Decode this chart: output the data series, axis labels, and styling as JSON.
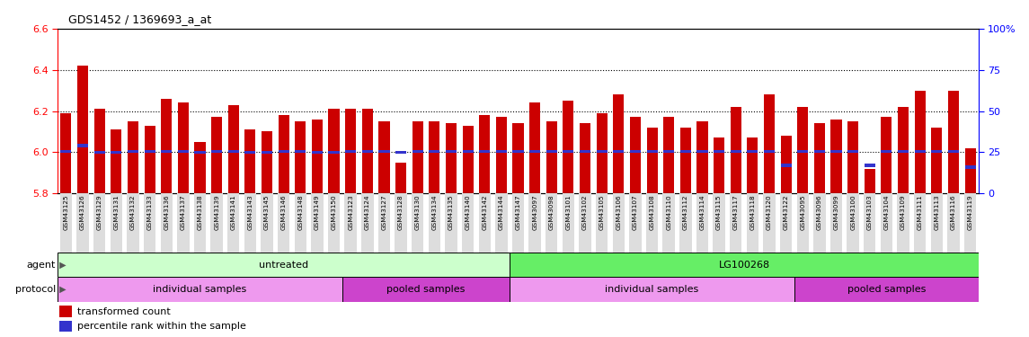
{
  "title": "GDS1452 / 1369693_a_at",
  "ylim": [
    5.8,
    6.6
  ],
  "yticks_left": [
    5.8,
    6.0,
    6.2,
    6.4,
    6.6
  ],
  "right_ytick_pct": [
    0,
    25,
    50,
    75,
    100
  ],
  "right_ylabels": [
    "0",
    "25",
    "50",
    "75",
    "100%"
  ],
  "bar_color": "#cc0000",
  "percentile_color": "#3333cc",
  "samples": [
    "GSM43125",
    "GSM43126",
    "GSM43129",
    "GSM43131",
    "GSM43132",
    "GSM43133",
    "GSM43136",
    "GSM43137",
    "GSM43138",
    "GSM43139",
    "GSM43141",
    "GSM43143",
    "GSM43145",
    "GSM43146",
    "GSM43148",
    "GSM43149",
    "GSM43150",
    "GSM43123",
    "GSM43124",
    "GSM43127",
    "GSM43128",
    "GSM43130",
    "GSM43134",
    "GSM43135",
    "GSM43140",
    "GSM43142",
    "GSM43144",
    "GSM43147",
    "GSM43097",
    "GSM43098",
    "GSM43101",
    "GSM43102",
    "GSM43105",
    "GSM43106",
    "GSM43107",
    "GSM43108",
    "GSM43110",
    "GSM43112",
    "GSM43114",
    "GSM43115",
    "GSM43117",
    "GSM43118",
    "GSM43120",
    "GSM43122",
    "GSM43095",
    "GSM43096",
    "GSM43099",
    "GSM43100",
    "GSM43103",
    "GSM43104",
    "GSM43109",
    "GSM43111",
    "GSM43113",
    "GSM43116",
    "GSM43119"
  ],
  "bar_values": [
    6.19,
    6.42,
    6.21,
    6.11,
    6.15,
    6.13,
    6.26,
    6.24,
    6.05,
    6.17,
    6.23,
    6.11,
    6.1,
    6.18,
    6.15,
    6.16,
    6.21,
    6.21,
    6.21,
    6.15,
    5.95,
    6.15,
    6.15,
    6.14,
    6.13,
    6.18,
    6.17,
    6.14,
    6.24,
    6.15,
    6.25,
    6.14,
    6.19,
    6.28,
    6.17,
    6.12,
    6.17,
    6.12,
    6.15,
    6.07,
    6.22,
    6.07,
    6.28,
    6.08,
    6.22,
    6.14,
    6.16,
    6.15,
    5.92,
    6.17,
    6.22,
    6.3,
    6.12,
    6.3,
    6.02
  ],
  "percentile_values": [
    6.005,
    6.032,
    6.0,
    6.0,
    6.005,
    6.005,
    6.005,
    6.005,
    6.0,
    6.005,
    6.005,
    6.0,
    6.0,
    6.005,
    6.005,
    6.0,
    6.0,
    6.005,
    6.005,
    6.005,
    6.0,
    6.005,
    6.005,
    6.005,
    6.005,
    6.005,
    6.005,
    6.005,
    6.005,
    6.005,
    6.005,
    6.005,
    6.005,
    6.005,
    6.005,
    6.005,
    6.005,
    6.005,
    6.005,
    6.005,
    6.005,
    6.005,
    6.005,
    5.936,
    6.005,
    6.005,
    6.005,
    6.005,
    5.936,
    6.005,
    6.005,
    6.005,
    6.005,
    6.005,
    5.928
  ],
  "agent_regions": [
    {
      "label": "untreated",
      "start": 0,
      "end": 27,
      "color": "#ccffcc"
    },
    {
      "label": "LG100268",
      "start": 27,
      "end": 55,
      "color": "#66ee66"
    }
  ],
  "protocol_regions": [
    {
      "label": "individual samples",
      "start": 0,
      "end": 17,
      "color": "#ee99ee"
    },
    {
      "label": "pooled samples",
      "start": 17,
      "end": 27,
      "color": "#cc44cc"
    },
    {
      "label": "individual samples",
      "start": 27,
      "end": 44,
      "color": "#ee99ee"
    },
    {
      "label": "pooled samples",
      "start": 44,
      "end": 55,
      "color": "#cc44cc"
    }
  ]
}
